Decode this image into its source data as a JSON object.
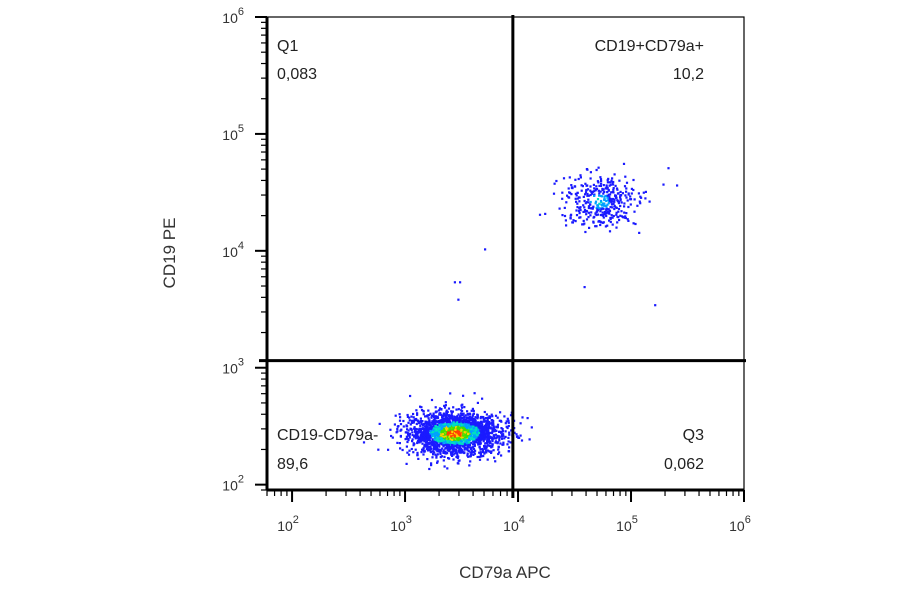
{
  "chart_data": {
    "type": "scatter",
    "plot_kind": "flow cytometry density dot plot with quadrant gates",
    "xlabel": "CD79a APC",
    "ylabel": "CD19 PE",
    "x_scale": "log",
    "y_scale": "log",
    "xlim": [
      60,
      1000000
    ],
    "ylim": [
      90,
      1000000
    ],
    "x_ticks": [
      {
        "value": 100,
        "base": "10",
        "exp": "2"
      },
      {
        "value": 1000,
        "base": "10",
        "exp": "3"
      },
      {
        "value": 10000,
        "base": "10",
        "exp": "4"
      },
      {
        "value": 100000,
        "base": "10",
        "exp": "5"
      },
      {
        "value": 1000000,
        "base": "10",
        "exp": "6"
      }
    ],
    "y_ticks": [
      {
        "value": 100,
        "base": "10",
        "exp": "2"
      },
      {
        "value": 1000,
        "base": "10",
        "exp": "3"
      },
      {
        "value": 10000,
        "base": "10",
        "exp": "4"
      },
      {
        "value": 100000,
        "base": "10",
        "exp": "5"
      },
      {
        "value": 1000000,
        "base": "10",
        "exp": "6"
      }
    ],
    "gate": {
      "x": 9000,
      "y": 1150
    },
    "quadrants": [
      {
        "name": "Q1",
        "value": "0,083",
        "position": "top-left"
      },
      {
        "name": "CD19+CD79a+",
        "value": "10,2",
        "position": "top-right"
      },
      {
        "name": "CD19-CD79a-",
        "value": "89,6",
        "position": "bottom-left"
      },
      {
        "name": "Q3",
        "value": "0,062",
        "position": "bottom-right"
      }
    ],
    "populations": [
      {
        "center_x": 2700,
        "center_y": 280,
        "spread_log_x": 0.2,
        "spread_log_y": 0.09,
        "share": 0.896
      },
      {
        "center_x": 52000,
        "center_y": 27000,
        "spread_log_x": 0.17,
        "spread_log_y": 0.12,
        "share": 0.102
      }
    ],
    "outliers": [
      {
        "x": 2700,
        "y": 5500
      },
      {
        "x": 3000,
        "y": 5500
      },
      {
        "x": 2900,
        "y": 3900
      },
      {
        "x": 5000,
        "y": 10500
      },
      {
        "x": 38000,
        "y": 5000
      },
      {
        "x": 160000,
        "y": 3500
      },
      {
        "x": 250000,
        "y": 37000
      },
      {
        "x": 210000,
        "y": 52000
      }
    ],
    "density_colors": [
      "#1a1aff",
      "#00a0ff",
      "#00e0c0",
      "#40e000",
      "#ffd000",
      "#ff4000"
    ],
    "grid": false,
    "legend": "none"
  }
}
